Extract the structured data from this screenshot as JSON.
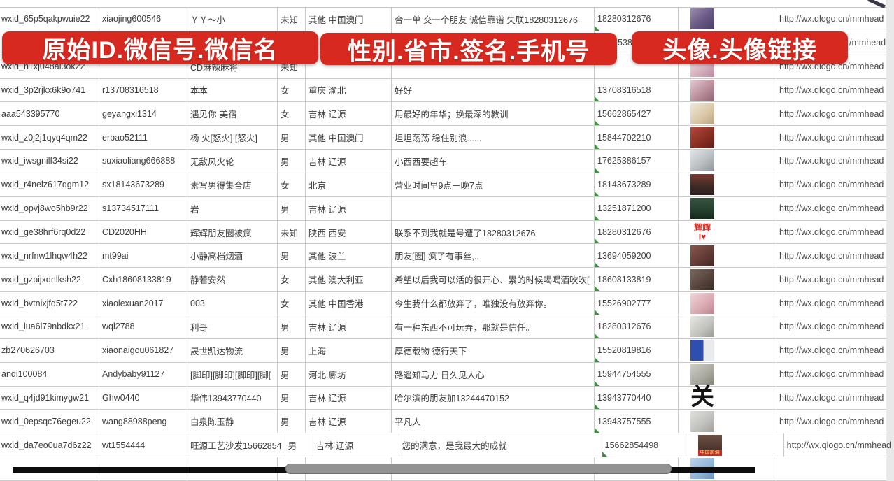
{
  "banners": {
    "bg_style": "background:#d7291f",
    "accent_red": "#d7291f",
    "id_banner": "原始ID.微信号.微信名",
    "info_banner": "性别.省市.签名.手机号",
    "avatar_banner": "头像.头像链接"
  },
  "scrollbar": {
    "track_style": "background:#0d0d0d",
    "thumb_style": "background:#929292;border:1px solid #6f6f6f",
    "track_color": "#0d0d0d",
    "thumb_color": "#929292"
  },
  "table": {
    "columns": [
      "原始ID",
      "微信号",
      "微信名",
      "性别",
      "省市",
      "签名",
      "手机号",
      "头像",
      "头像链接"
    ],
    "rows": [
      {
        "wxid": "wxid_65p5qakpwuie22",
        "wxno": "xiaojing600546",
        "name": "ＹＹ～小",
        "gender": "未知",
        "region": "其他 中国澳门",
        "sign": "合一单 交一个朋友 诚信靠谱 失联18280312676",
        "phone": "18280312676",
        "flag": true,
        "url": "http://wx.qlogo.cn/mmhead",
        "avatar_name": "photo-girl-purple",
        "avatar_style": "background:linear-gradient(140deg,#9b8fae 0%,#6b5a86 50%,#474066 100%)"
      },
      {
        "wxid": "",
        "wxno": "",
        "name": "",
        "gender": "",
        "region": "",
        "sign": "",
        "phone": "5386",
        "phone_style": "padding-left:33px",
        "flag": false,
        "url": "/mmhead",
        "url_style": "padding-left:104px",
        "avatar_name": "hidden-behind-banner",
        "avatar_style": ""
      },
      {
        "wxid": "wxid_h1xj048al3ok22",
        "wxno": "",
        "name": "CD麻辣麻将",
        "gender": "未知",
        "region": "",
        "sign": "",
        "phone": "",
        "flag": false,
        "url": "http://wx.qlogo.cn/mmhead",
        "avatar_name": "photo-light-pink",
        "avatar_style": "background:linear-gradient(140deg,#efdfe3 0%,#d4aebc 60%,#b98a9c 100%)"
      },
      {
        "wxid": "wxid_3p2rjkx6k9o741",
        "wxno": "r13708316518",
        "name": "本本",
        "gender": "女",
        "region": "重庆 渝北",
        "sign": "好好",
        "phone": "13708316518",
        "flag": true,
        "url": "http://wx.qlogo.cn/mmhead",
        "avatar_name": "photo-girl",
        "avatar_style": "background:linear-gradient(140deg,#e3c9d2 0%,#b88a98 60%,#8f6472 100%)"
      },
      {
        "wxid": "aaa543395770",
        "wxno": "geyangxi1314",
        "name": "遇见你·美宿",
        "gender": "女",
        "region": "吉林 辽源",
        "sign": "用最好的年华；换最深的教训",
        "phone": "15662865427",
        "flag": true,
        "url": "http://wx.qlogo.cn/mmhead",
        "avatar_name": "photo-beige-branches",
        "avatar_style": "background:linear-gradient(140deg,#efe8d8 0%,#d8c5a4 60%,#b9a27e 100%)"
      },
      {
        "wxid": "wxid_z0j2j1qyq4qm22",
        "wxno": "erbao52111",
        "name": "杨 火[怒火] [怒火]",
        "gender": "男",
        "region": "其他 中国澳门",
        "sign": "坦坦荡荡 稳住别浪......",
        "phone": "15844702210",
        "flag": true,
        "url": "http://wx.qlogo.cn/mmhead",
        "avatar_name": "photo-red-figures",
        "avatar_style": "background:linear-gradient(140deg,#b5483a 0%,#8a2f24 55%,#5f1d16 100%)"
      },
      {
        "wxid": "wxid_iwsgnilf34si22",
        "wxno": "suxiaoliang666888",
        "name": "无敌风火轮",
        "gender": "男",
        "region": "吉林 辽源",
        "sign": "小西西要超车",
        "phone": "17625386157",
        "flag": true,
        "url": "http://wx.qlogo.cn/mmhead",
        "avatar_name": "photo-man-in-car",
        "avatar_style": "background:linear-gradient(140deg,#e2e5e8 0%,#b9bec2 55%,#8f9599 100%)"
      },
      {
        "wxid": "wxid_r4nelz617qgm12",
        "wxno": "sx18143673289",
        "name": "素写男得集合店",
        "gender": "女",
        "region": "北京",
        "sign": "营业时间早9点－晚7点",
        "phone": "18143673289",
        "flag": true,
        "url": "http://wx.qlogo.cn/mmhead",
        "avatar_name": "photo-dark-storefront",
        "avatar_style": "background:linear-gradient(180deg,#7a3a30 0%,#402a26 55%,#2e201e 100%)"
      },
      {
        "wxid": "wxid_opvj8wo5hb9r22",
        "wxno": "s13734517111",
        "name": "岩",
        "gender": "男",
        "region": "吉林 辽源",
        "sign": "",
        "phone": "13251871200",
        "flag": true,
        "url": "http://wx.qlogo.cn/mmhead",
        "avatar_name": "poster-green-road",
        "avatar_style": "background:linear-gradient(180deg,#37543f 0%,#24402e 60%,#16271c 100%)"
      },
      {
        "wxid": "wxid_ge38hrf6rq0d22",
        "wxno": "CD2020HH",
        "name": "辉辉朋友圈被疯",
        "gender": "未知",
        "region": "陕西 西安",
        "sign": "联系不到我就是号遭了18280312676",
        "phone": "18280312676",
        "flag": true,
        "url": "http://wx.qlogo.cn/mmhead",
        "avatar_name": "text-avatar-huihui",
        "avatar_style": "background:#ffffff",
        "avatar_label": "辉辉\nI♥",
        "avatar_label_style": "color:#d7291f;font-weight:bold;font-size:12px"
      },
      {
        "wxid": "wxid_nrfnw1lhqw4h22",
        "wxno": "mt99ai",
        "name": "小静高档烟酒",
        "gender": "男",
        "region": "其他 波兰",
        "sign": "朋友[圈] 疯了有事丝,..",
        "phone": "13694059200",
        "flag": true,
        "url": "http://wx.qlogo.cn/mmhead",
        "avatar_name": "photo-woman-darkred",
        "avatar_style": "background:linear-gradient(140deg,#8a564c 0%,#5f3a34 60%,#3f2724 100%)"
      },
      {
        "wxid": "wxid_gzpijxdnlksh22",
        "wxno": "Cxh18608133819",
        "name": "静若安然",
        "gender": "女",
        "region": "其他 澳大利亚",
        "sign": "希望以后我可以活的很开心、累的时候喝喝酒吹吹[",
        "phone": "18608133819",
        "flag": true,
        "url": "http://wx.qlogo.cn/mmhead",
        "avatar_name": "photo-woman-dark",
        "avatar_style": "background:linear-gradient(140deg,#7d685e 0%,#54423a 60%,#362a26 100%)"
      },
      {
        "wxid": "wxid_bvtnixjfq5t722",
        "wxno": "xiaolexuan2017",
        "name": "003",
        "gender": "女",
        "region": "其他 中国香港",
        "sign": "今生我什么都放弃了，唯独没有放弃你。",
        "phone": "15526902777",
        "flag": true,
        "url": "http://wx.qlogo.cn/mmhead",
        "avatar_name": "photo-woman-pink",
        "avatar_style": "background:linear-gradient(140deg,#f2d6da 0%,#d8a8b0 60%,#b9848e 100%)"
      },
      {
        "wxid": "wxid_lua6l79nbdkx21",
        "wxno": "wql2788",
        "name": "利哥",
        "gender": "男",
        "region": "吉林 辽源",
        "sign": "有一种东西不可玩弄，那就是信任。",
        "phone": "18280312676",
        "flag": true,
        "url": "http://wx.qlogo.cn/mmhead",
        "avatar_name": "photo-person-headwrap",
        "avatar_style": "background:linear-gradient(140deg,#e8e8e4 0%,#c2c2bc 60%,#9a9a94 100%)"
      },
      {
        "wxid": "zb270626703",
        "wxno": "xiaonaigou061827",
        "name": "晟世凯达物流",
        "gender": "男",
        "region": "上海",
        "sign": "厚德载物 德行天下",
        "phone": "15520819816",
        "flag": true,
        "url": "http://wx.qlogo.cn/mmhead",
        "avatar_name": "qr-code-blue",
        "avatar_style": "background:linear-gradient(90deg,#2f4fae 55%,#e8eaf0 55%)"
      },
      {
        "wxid": "andi100084",
        "wxno": "Andybaby91127",
        "name": "[脚印][脚印][脚印][脚[",
        "gender": "男",
        "region": "河北 廊坊",
        "sign": "路遥知马力 日久见人心",
        "phone": "15944754555",
        "flag": true,
        "url": "http://wx.qlogo.cn/mmhead",
        "avatar_name": "photo-outdoor-gray",
        "avatar_style": "background:linear-gradient(140deg,#cfcfc6 0%,#a8a89e 60%,#848478 100%)"
      },
      {
        "wxid": "wxid_q4jd91kimygw21",
        "wxno": "Ghw0440",
        "name": "华伟13943770440",
        "gender": "男",
        "region": "吉林 辽源",
        "sign": "哈尔滨的朋友加13244470152",
        "phone": "13943770440",
        "flag": true,
        "url": "http://wx.qlogo.cn/mmhead",
        "avatar_name": "calligraphy-guan",
        "avatar_style": "background:#ffffff",
        "avatar_label": "关",
        "avatar_label_style": "color:#141414;font-size:34px;font-weight:bold;font-family:'DejaVu Serif',serif"
      },
      {
        "wxid": "wxid_0epsqc76egeu22",
        "wxno": "wang88988peng",
        "name": "白泉陈玉静",
        "gender": "男",
        "region": "吉林 辽源",
        "sign": "平凡人",
        "phone": "13943757555",
        "flag": true,
        "url": "http://wx.qlogo.cn/mmhead",
        "avatar_name": "photo-beach-light",
        "avatar_style": "background:linear-gradient(140deg,#e0e0dd 0%,#c0c0bb 60%,#9e9e98 100%)"
      },
      {
        "wxid": "wxid_da7eo0ua7d6z22",
        "wxno": "wt1554444",
        "name": "旺源工艺沙发15662854",
        "gender": "男",
        "region": "吉林 辽源",
        "sign": "您的满意，是我最大的成就",
        "phone": "15662854498",
        "flag": true,
        "url": "http://wx.qlogo.cn/mmhead",
        "avatar_name": "photo-china-jiayou",
        "avatar_style": "background:linear-gradient(180deg,#6e5044 0%,#4a352d 70%,#3a2a24 100%)",
        "avatar_label": "中国加油",
        "avatar_label_style": "top:auto;bottom:0;transform:none;background:#c62f26;color:#ffe28a;font-size:7px;line-height:9px"
      },
      {
        "wxid": "",
        "wxno": "",
        "name": "",
        "gender": "",
        "region": "",
        "sign": "",
        "phone": "",
        "flag": false,
        "url": "",
        "avatar_name": "photo-blue-cartoon-partial",
        "avatar_style": "background:linear-gradient(140deg,#bcd4ea 0%,#8fb3d8 60%,#6a94c2 100%)"
      }
    ]
  }
}
